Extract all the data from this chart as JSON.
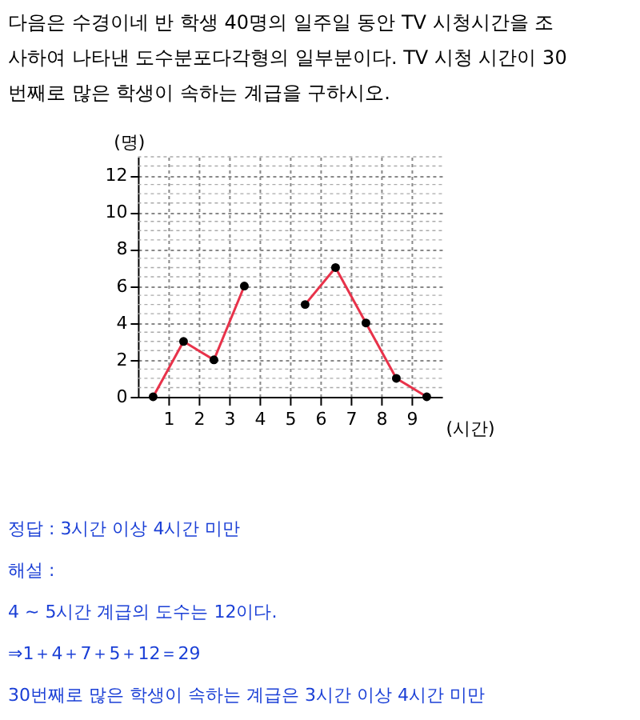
{
  "chart_data": {
    "type": "line",
    "title": [
      "다음은 수경이네 반 학생 40명의 일주일 동안 TV 시청시간을 조",
      "사하여 나타낸 도수분포다각형의 일부분이다. TV 시청 시간이 30",
      "번째로 많은 학생이 속하는 계급을 구하시오."
    ],
    "xlabel": "(시간)",
    "ylabel": "(명)",
    "x": [
      0.5,
      1.5,
      2.5,
      3.5,
      4.5,
      5.5,
      6.5,
      7.5,
      8.5,
      9.5
    ],
    "series": [
      {
        "color": "#e8324a",
        "values": [
          0,
          3,
          2,
          6,
          null,
          5,
          7,
          4,
          1,
          0
        ]
      }
    ],
    "marker": "circle",
    "xlim": [
      0,
      10
    ],
    "xticks": [
      1,
      2,
      3,
      4,
      5,
      6,
      7,
      8,
      9
    ],
    "ylim": [
      0,
      13
    ],
    "yticks": [
      0,
      2,
      4,
      6,
      8,
      10,
      12
    ],
    "grid": true,
    "annotations": [
      "정답 : 3시간 이상 4시간 미만",
      "해설 :",
      "4 ~ 5시간 계급의 도수는 12이다.",
      "⇒1＋4＋7＋5＋12＝29",
      "30번째로 많은 학생이 속하는 계급은 3시간 이상 4시간 미만"
    ]
  }
}
